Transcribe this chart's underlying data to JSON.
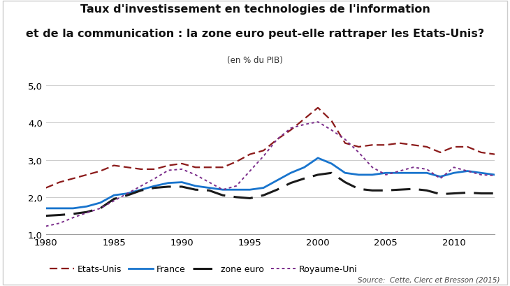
{
  "title_line1": "Taux d'investissement en technologies de l'information",
  "title_line2": "et de la communication : la zone euro peut-elle rattraper les Etats-Unis?",
  "subtitle": "(en % du PIB)",
  "source": "Source:  Cette, Clerc et Bresson (2015)",
  "years": [
    1980,
    1981,
    1982,
    1983,
    1984,
    1985,
    1986,
    1987,
    1988,
    1989,
    1990,
    1991,
    1992,
    1993,
    1994,
    1995,
    1996,
    1997,
    1998,
    1999,
    2000,
    2001,
    2002,
    2003,
    2004,
    2005,
    2006,
    2007,
    2008,
    2009,
    2010,
    2011,
    2012,
    2013
  ],
  "etats_unis": [
    2.25,
    2.4,
    2.5,
    2.6,
    2.7,
    2.85,
    2.8,
    2.75,
    2.75,
    2.85,
    2.9,
    2.8,
    2.8,
    2.8,
    2.95,
    3.15,
    3.25,
    3.55,
    3.8,
    4.1,
    4.4,
    4.05,
    3.45,
    3.35,
    3.4,
    3.4,
    3.45,
    3.4,
    3.35,
    3.2,
    3.35,
    3.35,
    3.2,
    3.15
  ],
  "france": [
    1.7,
    1.7,
    1.7,
    1.75,
    1.85,
    2.05,
    2.1,
    2.2,
    2.3,
    2.38,
    2.4,
    2.3,
    2.25,
    2.2,
    2.2,
    2.2,
    2.25,
    2.45,
    2.65,
    2.8,
    3.05,
    2.9,
    2.65,
    2.6,
    2.6,
    2.65,
    2.65,
    2.65,
    2.65,
    2.55,
    2.65,
    2.7,
    2.65,
    2.6
  ],
  "zone_euro": [
    1.5,
    1.52,
    1.55,
    1.6,
    1.7,
    1.95,
    2.05,
    2.18,
    2.25,
    2.28,
    2.28,
    2.2,
    2.18,
    2.05,
    2.0,
    1.97,
    2.05,
    2.2,
    2.38,
    2.5,
    2.6,
    2.65,
    2.4,
    2.22,
    2.18,
    2.18,
    2.2,
    2.22,
    2.18,
    2.08,
    2.1,
    2.12,
    2.1,
    2.1
  ],
  "royaume_uni": [
    1.22,
    1.3,
    1.45,
    1.58,
    1.7,
    1.9,
    2.1,
    2.3,
    2.5,
    2.72,
    2.75,
    2.6,
    2.4,
    2.2,
    2.3,
    2.7,
    3.1,
    3.55,
    3.85,
    3.95,
    4.02,
    3.8,
    3.55,
    3.2,
    2.8,
    2.6,
    2.7,
    2.8,
    2.75,
    2.5,
    2.8,
    2.7,
    2.6,
    2.58
  ],
  "ylim": [
    1.0,
    5.0
  ],
  "yticks": [
    1.0,
    2.0,
    3.0,
    4.0,
    5.0
  ],
  "ytick_labels": [
    "1,0",
    "2,0",
    "3,0",
    "4,0",
    "5,0"
  ],
  "xticks": [
    1980,
    1985,
    1990,
    1995,
    2000,
    2005,
    2010
  ],
  "bg_color": "#ffffff",
  "plot_bg_color": "#ffffff",
  "etats_unis_color": "#8B1A1A",
  "france_color": "#1874CD",
  "zone_euro_color": "#1a1a1a",
  "royaume_uni_color": "#7B2D8B",
  "legend_labels": [
    "Etats-Unis",
    "France",
    "zone euro",
    "Royaume-Uni"
  ]
}
